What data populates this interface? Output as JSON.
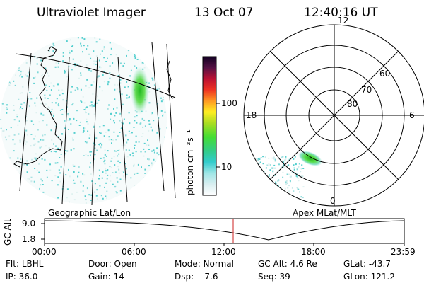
{
  "header": {
    "title": "Ultraviolet Imager",
    "date": "13 Oct 07",
    "time": "12:40:16 UT"
  },
  "colorbar": {
    "unit_label": "photon cm⁻²s⁻¹",
    "ticks": [
      "100",
      "10"
    ]
  },
  "polar_plot": {
    "mlt_labels": [
      "12",
      "18",
      "6",
      "0"
    ],
    "lat_labels": [
      "60",
      "70",
      "80"
    ],
    "caption": "Apex MLat/MLT"
  },
  "geo_plot": {
    "caption": "Geographic Lat/Lon"
  },
  "timeline": {
    "y_label": "GC Alt",
    "y_ticks": [
      "9.0",
      "1.8"
    ],
    "x_ticks": [
      "00:00",
      "06:00",
      "12:00",
      "18:00",
      "23:59"
    ]
  },
  "info": {
    "row1": [
      {
        "label": "Flt:",
        "value": "LBHL"
      },
      {
        "label": "Door:",
        "value": "Open"
      },
      {
        "label": "Mode:",
        "value": "Normal"
      },
      {
        "label": "GC Alt:",
        "value": "4.6 Re"
      },
      {
        "label": "GLat:",
        "value": "-43.7"
      }
    ],
    "row2": [
      {
        "label": "IP:",
        "value": "36.0"
      },
      {
        "label": "Gain:",
        "value": "14"
      },
      {
        "label": "Dsp:",
        "value": "7.6"
      },
      {
        "label": "Seq:",
        "value": "39"
      },
      {
        "label": "GLon:",
        "value": "121.2"
      }
    ]
  },
  "colors": {
    "accent_line": "#cc2222",
    "aurora_green": "#33cc33",
    "noise_cyan": "#66dddd"
  }
}
